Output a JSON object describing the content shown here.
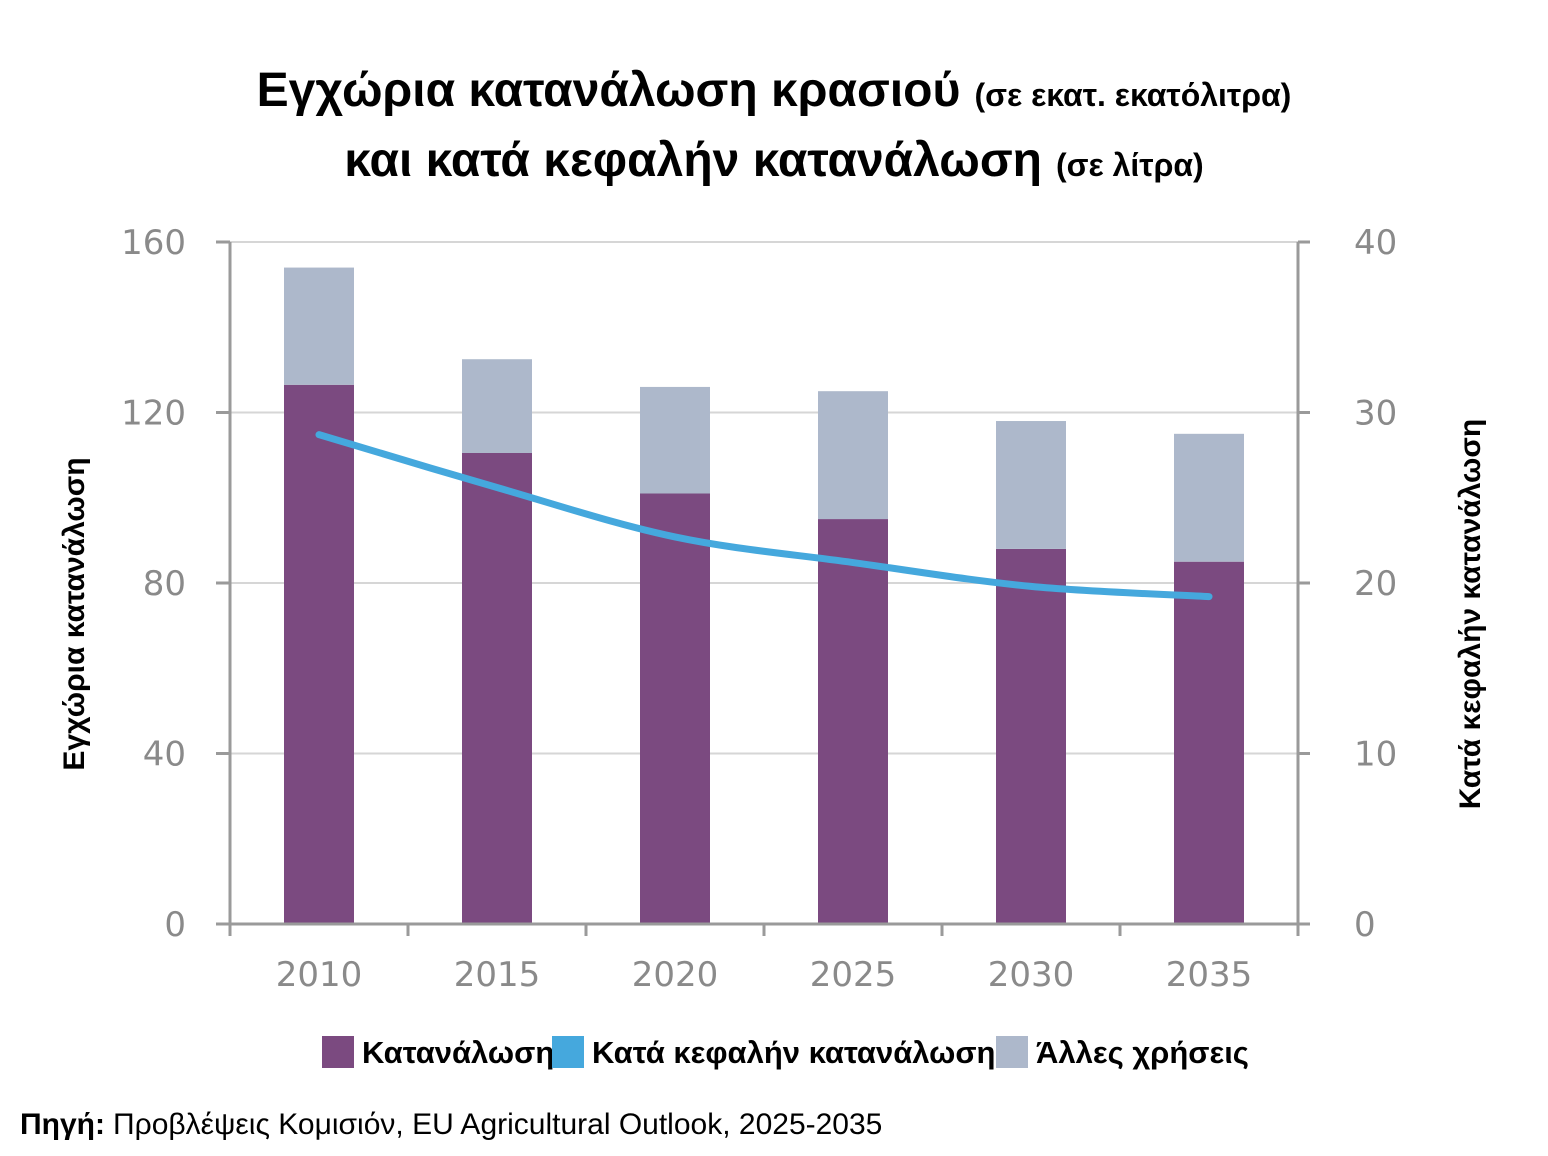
{
  "title": {
    "line1_main": "Εγχώρια κατανάλωση κρασιού",
    "line1_unit": "(σε εκατ. εκατόλιτρα)",
    "line2_main": "και κατά κεφαλήν κατανάλωση",
    "line2_unit": "(σε λίτρα)"
  },
  "source": {
    "label": "Πηγή:",
    "text": "Προβλέψεις Κομισιόν, EU Agricultural Outlook, 2025-2035"
  },
  "colors": {
    "consumption": "#7b4a80",
    "per_capita": "#45a8dd",
    "other_uses": "#adb8cb",
    "axis": "#9a9a9a",
    "grid": "#d6d6d6"
  },
  "chart_data": {
    "type": "bar",
    "categories": [
      "2010",
      "2015",
      "2020",
      "2025",
      "2030",
      "2035"
    ],
    "series": [
      {
        "name": "Κατανάλωση",
        "type": "bar",
        "stack": "total",
        "axis": "left",
        "values": [
          126.5,
          110.5,
          101,
          95,
          88,
          85
        ]
      },
      {
        "name": "Άλλες χρήσεις",
        "type": "bar",
        "stack": "total",
        "axis": "left",
        "values": [
          27.5,
          22,
          25,
          30,
          30,
          30
        ]
      },
      {
        "name": "Κατά κεφαλήν κατανάλωση",
        "type": "line",
        "axis": "right",
        "values": [
          28.7,
          25.6,
          22.7,
          21.2,
          19.8,
          19.2
        ]
      }
    ],
    "legend_order": [
      "Κατανάλωση",
      "Κατά κεφαλήν κατανάλωση",
      "Άλλες χρήσεις"
    ],
    "ylabel": "Εγχώρια κατανάλωση",
    "y2label": "Κατά κεφαλήν κατανάλωση",
    "ylim": [
      0,
      160
    ],
    "y2lim": [
      0,
      40
    ],
    "yticks": [
      0,
      40,
      80,
      120,
      160
    ],
    "y2ticks": [
      0,
      10,
      20,
      30,
      40
    ],
    "grid": true,
    "legend_position": "bottom"
  }
}
